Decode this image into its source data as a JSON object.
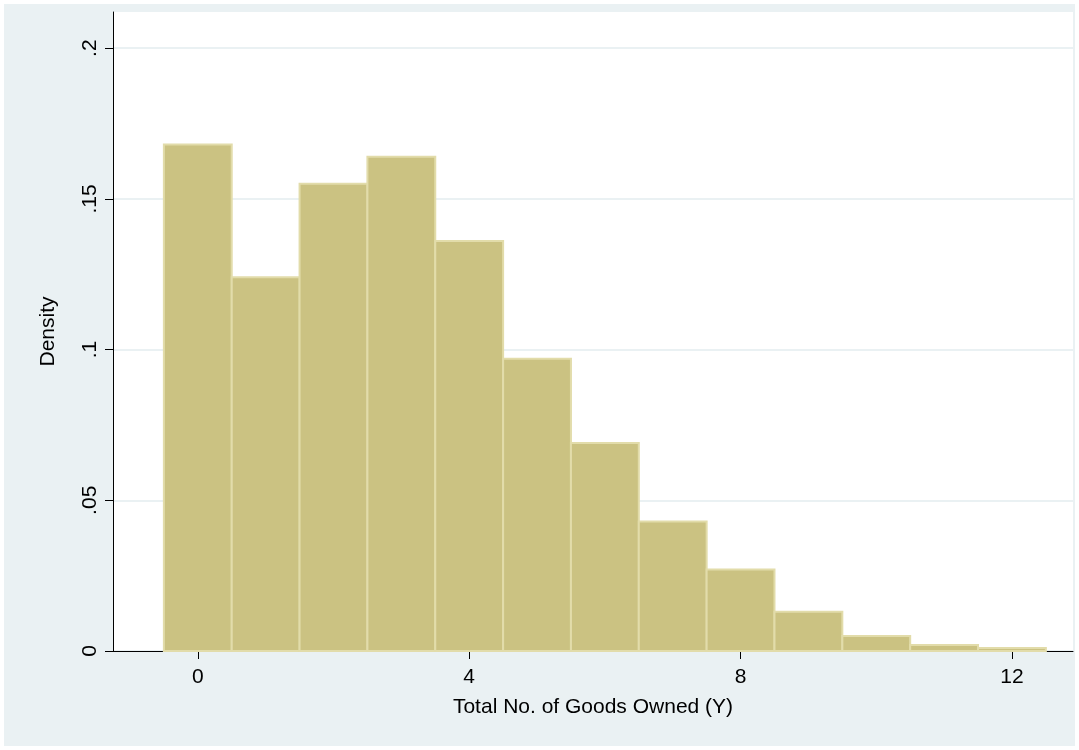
{
  "chart_data": {
    "type": "histogram",
    "xlabel": "Total No. of Goods Owned (Y)",
    "ylabel": "Density",
    "bins": [
      -0.5,
      0.5,
      1.5,
      2.5,
      3.5,
      4.5,
      5.5,
      6.5,
      7.5,
      8.5,
      9.5,
      10.5,
      11.5,
      12.5
    ],
    "values": [
      0.168,
      0.124,
      0.155,
      0.164,
      0.136,
      0.097,
      0.069,
      0.043,
      0.027,
      0.013,
      0.005,
      0.002,
      0.001
    ],
    "color": "#cbc282",
    "xlim": [
      -1.25,
      12.9
    ],
    "xticks": [
      0,
      4,
      8,
      12
    ],
    "ylim": [
      0,
      0.212
    ],
    "yticks": [
      0,
      {
        "value": 0.05,
        "label": ".05"
      },
      {
        "value": 0.1,
        "label": ".1"
      },
      {
        "value": 0.15,
        "label": ".15"
      },
      {
        "value": 0.2,
        "label": ".2"
      }
    ],
    "grid": "y"
  }
}
